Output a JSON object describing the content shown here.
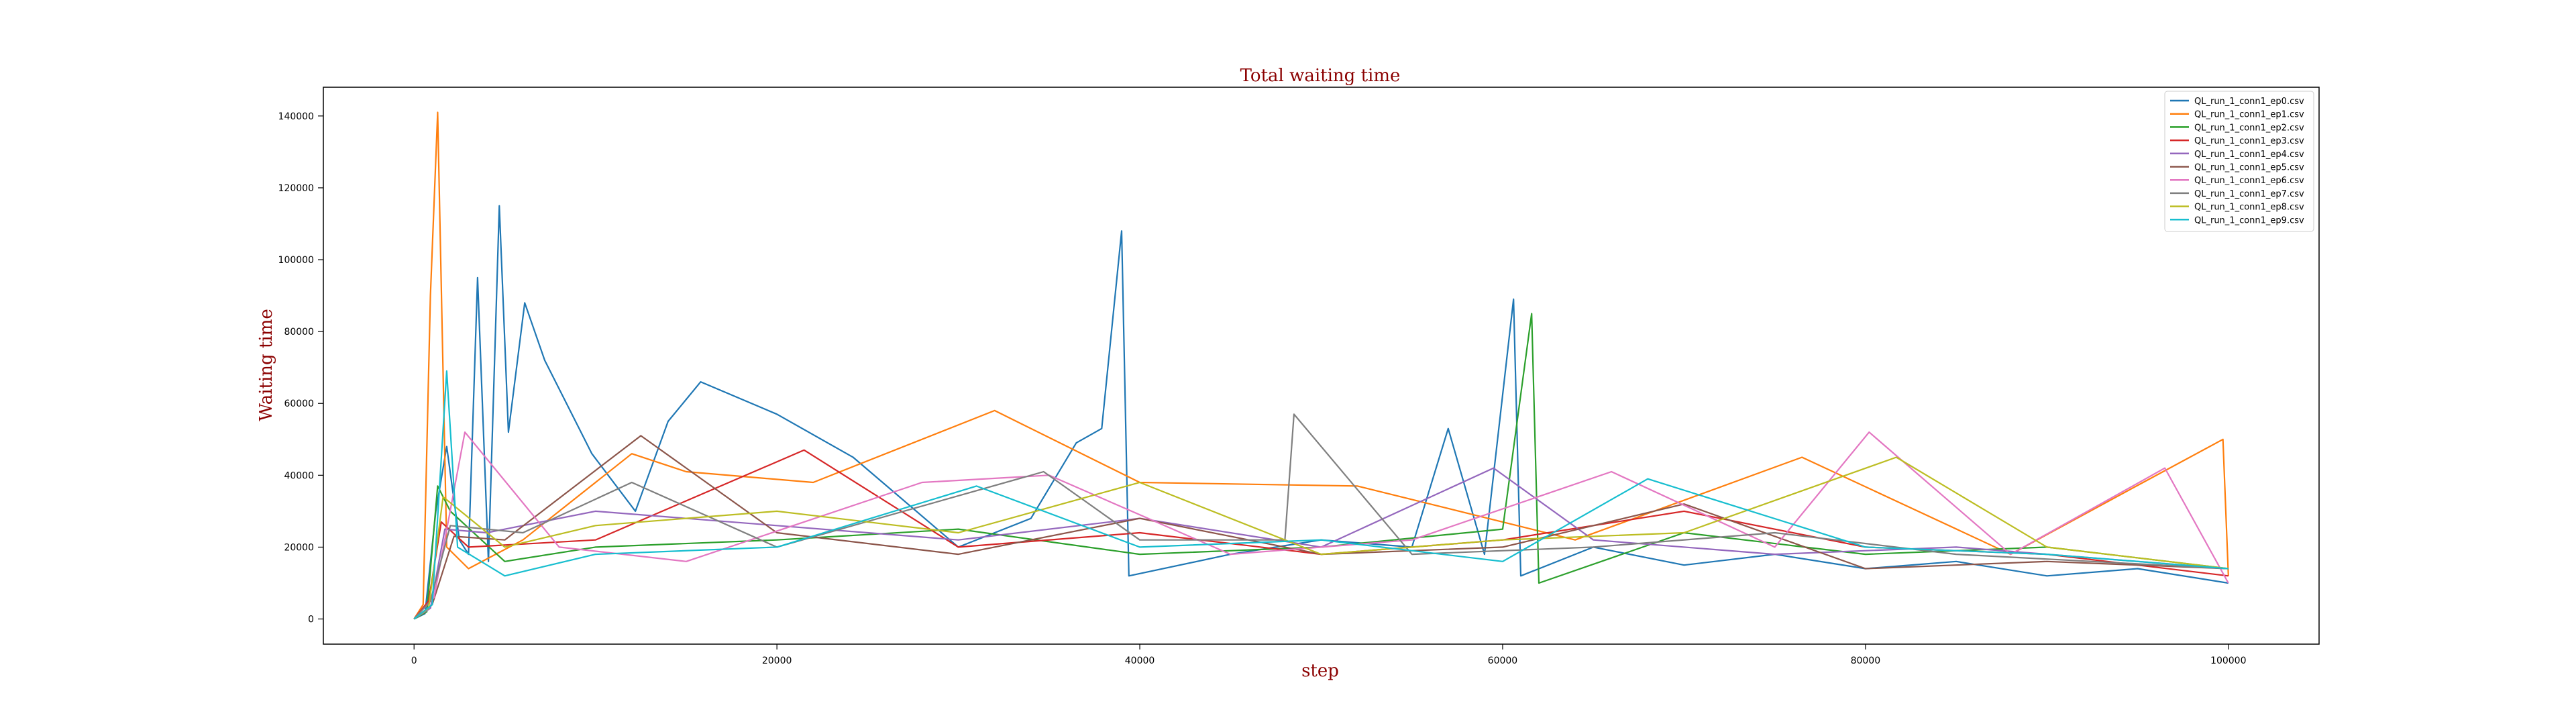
{
  "chart_data": {
    "type": "line",
    "title": "Total waiting time",
    "xlabel": "step",
    "ylabel": "Waiting time",
    "xlim": [
      -5000,
      105000
    ],
    "ylim": [
      -7000,
      148000
    ],
    "xticks": [
      0,
      20000,
      40000,
      60000,
      80000,
      100000
    ],
    "xtick_labels": [
      "0",
      "20000",
      "40000",
      "60000",
      "80000",
      "100000"
    ],
    "yticks": [
      0,
      20000,
      40000,
      60000,
      80000,
      100000,
      120000,
      140000
    ],
    "ytick_labels": [
      "0",
      "20000",
      "40000",
      "60000",
      "80000",
      "100000",
      "120000",
      "140000"
    ],
    "title_color": "#8b0000",
    "label_color": "#8b0000",
    "grid": false,
    "legend_position": "top-right",
    "series": [
      {
        "name": "QL_run_1_conn1_ep0.csv",
        "color": "#1f77b4",
        "x": [
          0,
          600,
          1200,
          1800,
          2500,
          3000,
          3500,
          4100,
          4700,
          5200,
          6100,
          7200,
          9800,
          12200,
          14000,
          15800,
          20000,
          24200,
          30000,
          34000,
          36500,
          37900,
          39000,
          39400,
          45000,
          50000,
          55000,
          57000,
          59000,
          60600,
          61000,
          65000,
          70000,
          75000,
          80000,
          85000,
          90000,
          95000,
          100000
        ],
        "y": [
          0,
          1500,
          30000,
          48000,
          22000,
          18000,
          95000,
          16000,
          115000,
          52000,
          88000,
          72000,
          46000,
          30000,
          55000,
          66000,
          57000,
          45000,
          20000,
          28000,
          49000,
          53000,
          108000,
          12000,
          18000,
          22000,
          20000,
          53000,
          18000,
          89000,
          12000,
          20000,
          15000,
          18000,
          14000,
          16000,
          12000,
          14000,
          10000
        ]
      },
      {
        "name": "QL_run_1_conn1_ep1.csv",
        "color": "#ff7f0e",
        "x": [
          0,
          500,
          900,
          1300,
          1800,
          3000,
          6000,
          12000,
          15000,
          22000,
          32000,
          40000,
          52000,
          64000,
          76500,
          88000,
          95300,
          99700,
          100000
        ],
        "y": [
          0,
          4000,
          90000,
          141000,
          20000,
          14000,
          22000,
          46000,
          41000,
          38000,
          58000,
          38000,
          37000,
          22000,
          45000,
          18000,
          38000,
          50000,
          12000
        ]
      },
      {
        "name": "QL_run_1_conn1_ep2.csv",
        "color": "#2ca02c",
        "x": [
          0,
          700,
          1300,
          2000,
          5000,
          10000,
          20000,
          30000,
          40000,
          50000,
          60000,
          61600,
          62000,
          70000,
          80000,
          90000,
          100000
        ],
        "y": [
          0,
          2000,
          37000,
          30000,
          16000,
          20000,
          22000,
          25000,
          18000,
          20000,
          25000,
          85000,
          10000,
          24000,
          18000,
          20000,
          14000
        ]
      },
      {
        "name": "QL_run_1_conn1_ep3.csv",
        "color": "#d62728",
        "x": [
          0,
          800,
          1500,
          3000,
          10000,
          21500,
          30000,
          40000,
          50000,
          60000,
          70000,
          80000,
          90000,
          100000
        ],
        "y": [
          0,
          5000,
          27000,
          20000,
          22000,
          47000,
          20000,
          24000,
          18000,
          22000,
          30000,
          20000,
          18000,
          12000
        ]
      },
      {
        "name": "QL_run_1_conn1_ep4.csv",
        "color": "#9467bd",
        "x": [
          0,
          900,
          1700,
          4000,
          10000,
          20000,
          30000,
          40000,
          50000,
          59500,
          65000,
          75000,
          85000,
          100000
        ],
        "y": [
          0,
          3000,
          25000,
          24000,
          30000,
          26000,
          22000,
          28000,
          20000,
          42000,
          22000,
          18000,
          20000,
          14000
        ]
      },
      {
        "name": "QL_run_1_conn1_ep5.csv",
        "color": "#8c564b",
        "x": [
          0,
          1000,
          2200,
          5000,
          12500,
          20000,
          30000,
          40000,
          50000,
          60000,
          70000,
          80000,
          90000,
          100000
        ],
        "y": [
          0,
          4000,
          23000,
          22000,
          51000,
          24000,
          18000,
          28000,
          18000,
          20000,
          32000,
          14000,
          16000,
          14000
        ]
      },
      {
        "name": "QL_run_1_conn1_ep6.csv",
        "color": "#e377c2",
        "x": [
          0,
          1100,
          2800,
          8000,
          15000,
          28000,
          35000,
          45000,
          55000,
          66000,
          75000,
          80200,
          88000,
          96500,
          100000
        ],
        "y": [
          0,
          6000,
          52000,
          20000,
          16000,
          38000,
          40000,
          18000,
          22000,
          41000,
          20000,
          52000,
          18000,
          42000,
          10000
        ]
      },
      {
        "name": "QL_run_1_conn1_ep7.csv",
        "color": "#7f7f7f",
        "x": [
          0,
          900,
          2000,
          6000,
          12000,
          20000,
          34700,
          40000,
          48000,
          48500,
          55000,
          65000,
          75000,
          85000,
          100000
        ],
        "y": [
          0,
          5000,
          26000,
          24000,
          38000,
          20000,
          41000,
          22000,
          22000,
          57000,
          18000,
          20000,
          24000,
          18000,
          14000
        ]
      },
      {
        "name": "QL_run_1_conn1_ep8.csv",
        "color": "#bcbd22",
        "x": [
          0,
          800,
          1600,
          5000,
          10000,
          20000,
          30000,
          40000,
          50000,
          60000,
          70000,
          81700,
          90000,
          100000
        ],
        "y": [
          0,
          3000,
          34000,
          20000,
          26000,
          30000,
          24000,
          38000,
          18000,
          22000,
          24000,
          45000,
          20000,
          14000
        ]
      },
      {
        "name": "QL_run_1_conn1_ep9.csv",
        "color": "#17becf",
        "x": [
          0,
          1000,
          1800,
          2400,
          5000,
          10000,
          20000,
          31000,
          40000,
          50000,
          60000,
          68000,
          80000,
          90000,
          100000
        ],
        "y": [
          0,
          4000,
          69000,
          20000,
          12000,
          18000,
          20000,
          37000,
          20000,
          22000,
          16000,
          39000,
          20000,
          18000,
          14000
        ]
      }
    ]
  }
}
